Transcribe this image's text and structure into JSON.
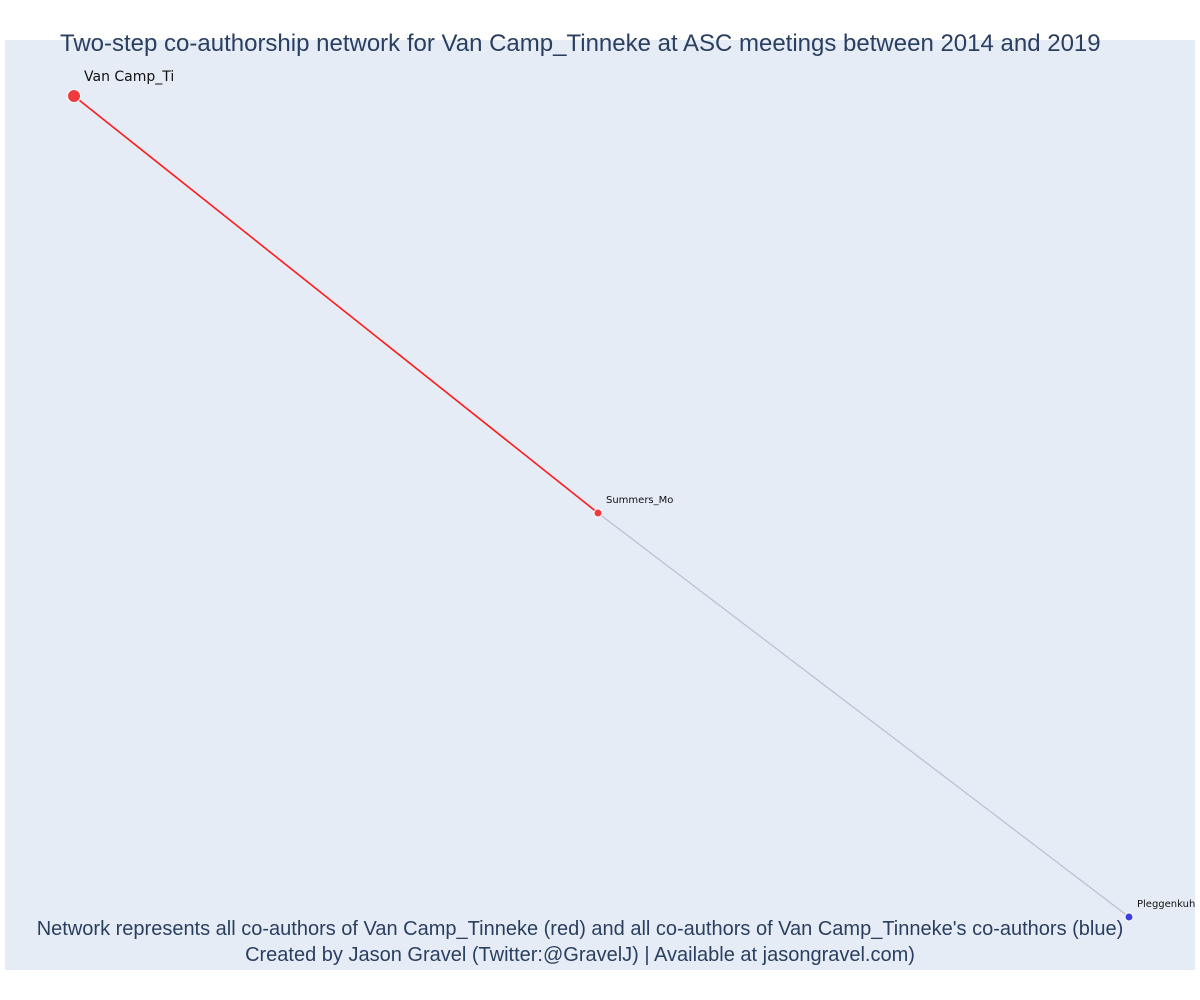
{
  "title": "Two-step co-authorship network for Van Camp_Tinneke at ASC meetings between 2014 and 2019",
  "caption_line1": "Network represents all co-authors of Van Camp_Tinneke (red) and all co-authors of Van Camp_Tinneke's co-authors (blue)",
  "caption_line2": "Created by Jason Gravel (Twitter:@GravelJ) | Available at jasongravel.com)",
  "colors": {
    "plot_background": "#e5ecf6",
    "focal_node": "#ef3b3b",
    "coauthor_node": "#ef3b3b",
    "second_step_node": "#3f3fe0",
    "focal_edge": "#ff1a1a",
    "second_step_edge": "#b9bfd0",
    "text": "#2a3f5f"
  },
  "nodes": [
    {
      "id": "focal",
      "label": "Van Camp_Ti",
      "group": "focal"
    },
    {
      "id": "summers",
      "label": "Summers_Mo",
      "group": "coauthor"
    },
    {
      "id": "pleggenkuhle",
      "label": "Pleggenkuhle",
      "group": "second_step"
    }
  ],
  "edges": [
    {
      "source": "focal",
      "target": "summers",
      "group": "focal"
    },
    {
      "source": "summers",
      "target": "pleggenkuhle",
      "group": "second_step"
    }
  ]
}
